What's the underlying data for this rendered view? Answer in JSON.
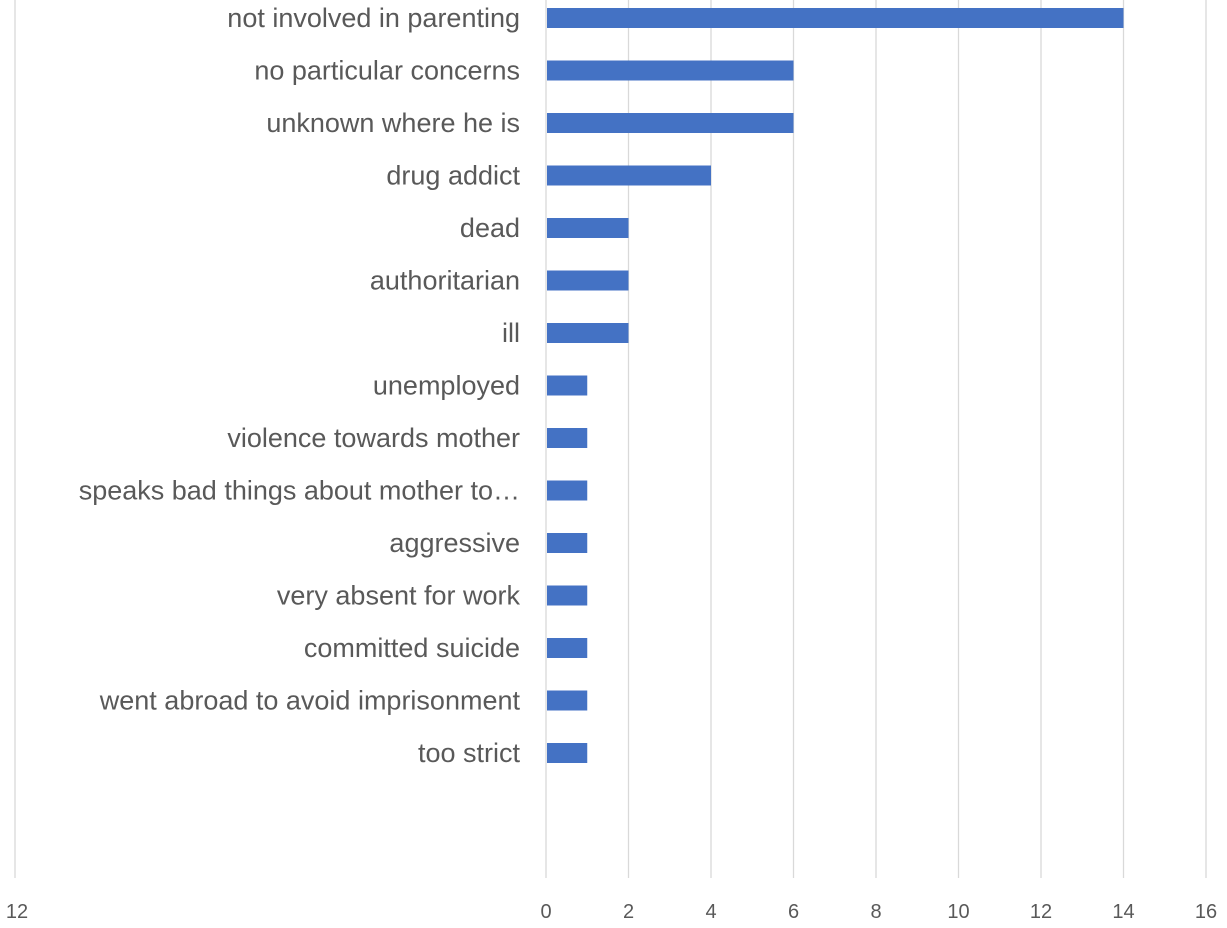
{
  "chart_data": {
    "type": "bar",
    "orientation": "horizontal",
    "categories": [
      "not involved in parenting",
      "no particular concerns",
      "unknown where he is",
      "drug addict",
      "dead",
      "authoritarian",
      "ill",
      "unemployed",
      "violence towards mother",
      "speaks bad things about mother to…",
      "aggressive",
      "very absent for work",
      "committed suicide",
      "went abroad to avoid imprisonment",
      "too strict"
    ],
    "values": [
      14,
      6,
      6,
      4,
      2,
      2,
      2,
      1,
      1,
      1,
      1,
      1,
      1,
      1,
      1
    ],
    "xlim": [
      0,
      16
    ],
    "xticks": [
      "0",
      "2",
      "4",
      "6",
      "8",
      "10",
      "12",
      "14",
      "16"
    ],
    "stray_tick_label": "12",
    "bar_color": "#4472c4",
    "grid": true,
    "title": "",
    "xlabel": "",
    "ylabel": ""
  }
}
